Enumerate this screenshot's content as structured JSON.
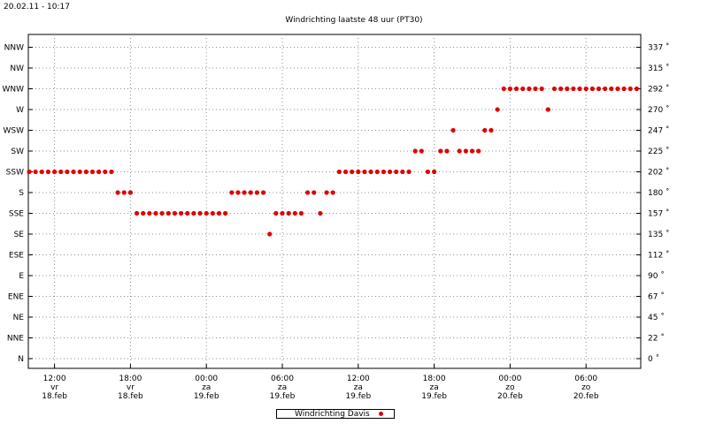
{
  "header": {
    "timestamp": "20.02.11 - 10:17",
    "title": "Windrichting laatste 48 uur (PT30)"
  },
  "legend": {
    "label": "Windrichting Davis",
    "color": "#e00000"
  },
  "colors": {
    "series": "#e00000",
    "grid": "#909090",
    "axis": "#000000"
  },
  "chart_data": {
    "type": "scatter",
    "title": "Windrichting laatste 48 uur (PT30)",
    "xlabel": "",
    "ylabel": "",
    "grid": true,
    "legend_position": "bottom",
    "left_axis_labels": [
      "N",
      "NNE",
      "NE",
      "ENE",
      "E",
      "ESE",
      "SE",
      "SSE",
      "S",
      "SSW",
      "SW",
      "WSW",
      "W",
      "WNW",
      "NW",
      "NNW"
    ],
    "right_axis_labels": [
      "0 ˚",
      "22 ˚",
      "45 ˚",
      "67 ˚",
      "90 ˚",
      "112 ˚",
      "135 ˚",
      "157 ˚",
      "180 ˚",
      "202 ˚",
      "225 ˚",
      "247 ˚",
      "270 ˚",
      "292 ˚",
      "315 ˚",
      "337 ˚"
    ],
    "ylim": [
      0,
      337.5
    ],
    "xlim": [
      "2011-02-18 10:00",
      "2011-02-20 10:17"
    ],
    "x_ticks": [
      {
        "time": "2011-02-18 12:00",
        "line1": "12:00",
        "line2": "vr",
        "line3": "18.feb"
      },
      {
        "time": "2011-02-18 18:00",
        "line1": "18:00",
        "line2": "vr",
        "line3": "18.feb"
      },
      {
        "time": "2011-02-19 00:00",
        "line1": "00:00",
        "line2": "za",
        "line3": "19.feb"
      },
      {
        "time": "2011-02-19 06:00",
        "line1": "06:00",
        "line2": "za",
        "line3": "19.feb"
      },
      {
        "time": "2011-02-19 12:00",
        "line1": "12:00",
        "line2": "za",
        "line3": "19.feb"
      },
      {
        "time": "2011-02-19 18:00",
        "line1": "18:00",
        "line2": "za",
        "line3": "19.feb"
      },
      {
        "time": "2011-02-20 00:00",
        "line1": "00:00",
        "line2": "zo",
        "line3": "20.feb"
      },
      {
        "time": "2011-02-20 06:00",
        "line1": "06:00",
        "line2": "zo",
        "line3": "20.feb"
      }
    ],
    "series": [
      {
        "name": "Windrichting Davis",
        "points": [
          [
            "2011-02-18 10:00",
            202.5
          ],
          [
            "2011-02-18 10:30",
            202.5
          ],
          [
            "2011-02-18 11:00",
            202.5
          ],
          [
            "2011-02-18 11:30",
            202.5
          ],
          [
            "2011-02-18 12:00",
            202.5
          ],
          [
            "2011-02-18 12:30",
            202.5
          ],
          [
            "2011-02-18 13:00",
            202.5
          ],
          [
            "2011-02-18 13:30",
            202.5
          ],
          [
            "2011-02-18 14:00",
            202.5
          ],
          [
            "2011-02-18 14:30",
            202.5
          ],
          [
            "2011-02-18 15:00",
            202.5
          ],
          [
            "2011-02-18 15:30",
            202.5
          ],
          [
            "2011-02-18 16:00",
            202.5
          ],
          [
            "2011-02-18 16:30",
            202.5
          ],
          [
            "2011-02-18 17:00",
            180
          ],
          [
            "2011-02-18 17:30",
            180
          ],
          [
            "2011-02-18 18:00",
            180
          ],
          [
            "2011-02-18 18:30",
            157.5
          ],
          [
            "2011-02-18 19:00",
            157.5
          ],
          [
            "2011-02-18 19:30",
            157.5
          ],
          [
            "2011-02-18 20:00",
            157.5
          ],
          [
            "2011-02-18 20:30",
            157.5
          ],
          [
            "2011-02-18 21:00",
            157.5
          ],
          [
            "2011-02-18 21:30",
            157.5
          ],
          [
            "2011-02-18 22:00",
            157.5
          ],
          [
            "2011-02-18 22:30",
            157.5
          ],
          [
            "2011-02-18 23:00",
            157.5
          ],
          [
            "2011-02-18 23:30",
            157.5
          ],
          [
            "2011-02-19 00:00",
            157.5
          ],
          [
            "2011-02-19 00:30",
            157.5
          ],
          [
            "2011-02-19 01:00",
            157.5
          ],
          [
            "2011-02-19 01:30",
            157.5
          ],
          [
            "2011-02-19 02:00",
            180
          ],
          [
            "2011-02-19 02:30",
            180
          ],
          [
            "2011-02-19 03:00",
            180
          ],
          [
            "2011-02-19 03:30",
            180
          ],
          [
            "2011-02-19 04:00",
            180
          ],
          [
            "2011-02-19 04:30",
            180
          ],
          [
            "2011-02-19 05:00",
            135
          ],
          [
            "2011-02-19 05:30",
            157.5
          ],
          [
            "2011-02-19 06:00",
            157.5
          ],
          [
            "2011-02-19 06:30",
            157.5
          ],
          [
            "2011-02-19 07:00",
            157.5
          ],
          [
            "2011-02-19 07:30",
            157.5
          ],
          [
            "2011-02-19 08:00",
            180
          ],
          [
            "2011-02-19 08:30",
            180
          ],
          [
            "2011-02-19 09:00",
            157.5
          ],
          [
            "2011-02-19 09:30",
            180
          ],
          [
            "2011-02-19 10:00",
            180
          ],
          [
            "2011-02-19 10:30",
            202.5
          ],
          [
            "2011-02-19 11:00",
            202.5
          ],
          [
            "2011-02-19 11:30",
            202.5
          ],
          [
            "2011-02-19 12:00",
            202.5
          ],
          [
            "2011-02-19 12:30",
            202.5
          ],
          [
            "2011-02-19 13:00",
            202.5
          ],
          [
            "2011-02-19 13:30",
            202.5
          ],
          [
            "2011-02-19 14:00",
            202.5
          ],
          [
            "2011-02-19 14:30",
            202.5
          ],
          [
            "2011-02-19 15:00",
            202.5
          ],
          [
            "2011-02-19 15:30",
            202.5
          ],
          [
            "2011-02-19 16:00",
            202.5
          ],
          [
            "2011-02-19 16:30",
            225
          ],
          [
            "2011-02-19 17:00",
            225
          ],
          [
            "2011-02-19 17:30",
            202.5
          ],
          [
            "2011-02-19 18:00",
            202.5
          ],
          [
            "2011-02-19 18:30",
            225
          ],
          [
            "2011-02-19 19:00",
            225
          ],
          [
            "2011-02-19 19:30",
            247.5
          ],
          [
            "2011-02-19 20:00",
            225
          ],
          [
            "2011-02-19 20:30",
            225
          ],
          [
            "2011-02-19 21:00",
            225
          ],
          [
            "2011-02-19 21:30",
            225
          ],
          [
            "2011-02-19 22:00",
            247.5
          ],
          [
            "2011-02-19 22:30",
            247.5
          ],
          [
            "2011-02-19 23:00",
            270
          ],
          [
            "2011-02-19 23:30",
            292.5
          ],
          [
            "2011-02-20 00:00",
            292.5
          ],
          [
            "2011-02-20 00:30",
            292.5
          ],
          [
            "2011-02-20 01:00",
            292.5
          ],
          [
            "2011-02-20 01:30",
            292.5
          ],
          [
            "2011-02-20 02:00",
            292.5
          ],
          [
            "2011-02-20 02:30",
            292.5
          ],
          [
            "2011-02-20 03:00",
            270
          ],
          [
            "2011-02-20 03:30",
            292.5
          ],
          [
            "2011-02-20 04:00",
            292.5
          ],
          [
            "2011-02-20 04:30",
            292.5
          ],
          [
            "2011-02-20 05:00",
            292.5
          ],
          [
            "2011-02-20 05:30",
            292.5
          ],
          [
            "2011-02-20 06:00",
            292.5
          ],
          [
            "2011-02-20 06:30",
            292.5
          ],
          [
            "2011-02-20 07:00",
            292.5
          ],
          [
            "2011-02-20 07:30",
            292.5
          ],
          [
            "2011-02-20 08:00",
            292.5
          ],
          [
            "2011-02-20 08:30",
            292.5
          ],
          [
            "2011-02-20 09:00",
            292.5
          ],
          [
            "2011-02-20 09:30",
            292.5
          ],
          [
            "2011-02-20 10:00",
            292.5
          ]
        ]
      }
    ]
  }
}
